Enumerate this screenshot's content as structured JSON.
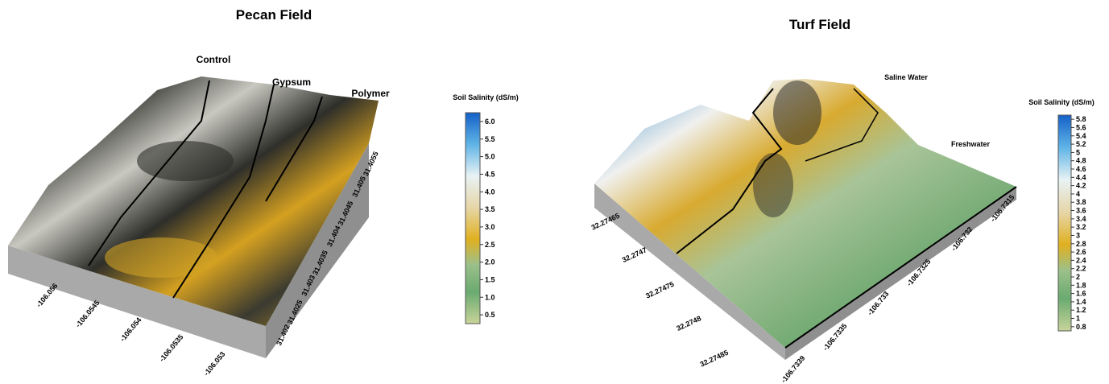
{
  "left": {
    "title": "Pecan Field",
    "treatments": [
      "Control",
      "Gypsum",
      "Polymer"
    ],
    "colorbar": {
      "title": "Soil Salinity (dS/m)",
      "ticks": [
        "6.0",
        "5.5",
        "5.0",
        "4.5",
        "4.0",
        "3.5",
        "3.0",
        "2.5",
        "2.0",
        "1.5",
        "1.0",
        "0.5"
      ]
    },
    "x_ticks": [
      "-106.056",
      "-106.0545",
      "-106.054",
      "-106.0535",
      "-106.053"
    ],
    "y_ticks": [
      "31.402",
      "31.4025",
      "31.403",
      "31.4035",
      "31.404",
      "31.4045",
      "31.405",
      "31.4055"
    ]
  },
  "right": {
    "title": "Turf Field",
    "treatments": [
      "Saline Water",
      "Freshwater"
    ],
    "colorbar": {
      "title": "Soil Salinity (dS/m)",
      "ticks": [
        "5.8",
        "5.6",
        "5.4",
        "5.2",
        "5",
        "4.8",
        "4.6",
        "4.4",
        "4.2",
        "4",
        "3.8",
        "3.6",
        "3.4",
        "3.2",
        "3",
        "2.8",
        "2.6",
        "2.4",
        "2.2",
        "2",
        "1.8",
        "1.6",
        "1.4",
        "1.2",
        "1",
        "0.8"
      ]
    },
    "x_ticks": [
      "-106.7339",
      "-106.7335",
      "-106.733",
      "-106.7325",
      "-106.732",
      "-106.7315"
    ],
    "y_ticks": [
      "32.27465",
      "32.2747",
      "32.27475",
      "32.2748",
      "32.27485"
    ]
  }
}
